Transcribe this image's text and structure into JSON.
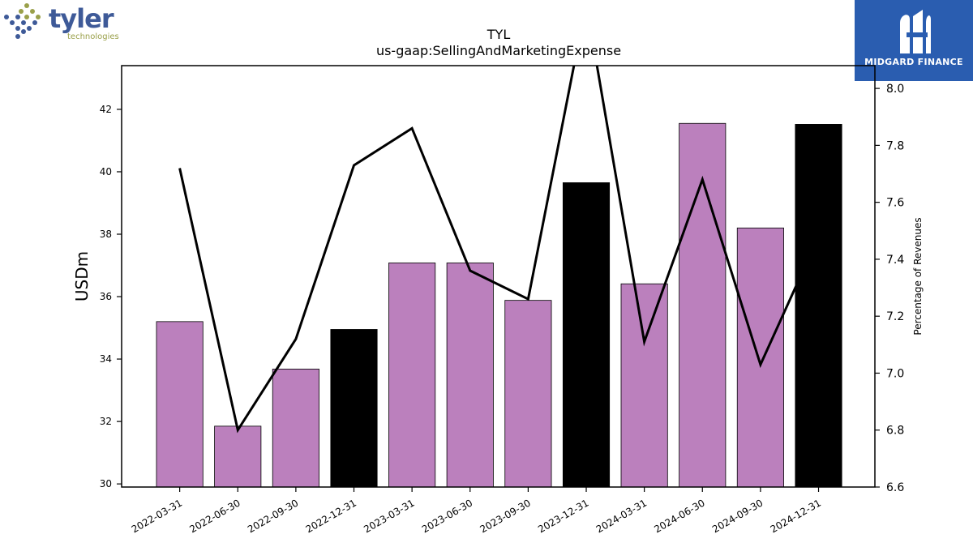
{
  "logos": {
    "left": {
      "word": "tyler",
      "sub": "technologies",
      "icon": "tyler-dots-logo"
    },
    "right": {
      "name": "MIDGARD FINANCE",
      "icon": "midgard-logo"
    }
  },
  "chart_data": {
    "type": "bar",
    "title": "TYL",
    "subtitle": "us-gaap:SellingAndMarketingExpense",
    "ylabel": "USDm",
    "y2label": "Percentage of Revenues",
    "categories": [
      "2022-03-31",
      "2022-06-30",
      "2022-09-30",
      "2022-12-31",
      "2023-03-31",
      "2023-06-30",
      "2023-09-30",
      "2023-12-31",
      "2024-03-31",
      "2024-06-30",
      "2024-09-30",
      "2024-12-31"
    ],
    "series": [
      {
        "values": [
          35.2,
          31.85,
          33.68,
          34.95,
          37.08,
          37.08,
          35.88,
          39.65,
          36.41,
          41.55,
          38.2,
          41.52
        ],
        "axis": "left",
        "colors": [
          "#bb80bd",
          "#bb80bd",
          "#bb80bd",
          "#000000",
          "#bb80bd",
          "#bb80bd",
          "#bb80bd",
          "#000000",
          "#bb80bd",
          "#bb80bd",
          "#bb80bd",
          "#000000"
        ]
      },
      {
        "type": "line",
        "values": [
          7.72,
          6.8,
          7.12,
          7.73,
          7.86,
          7.36,
          7.26,
          8.3,
          7.11,
          7.68,
          7.03,
          7.48
        ],
        "axis": "right",
        "color": "#000000"
      }
    ],
    "ylim": [
      29.9,
      43.4
    ],
    "y2lim": [
      6.6,
      8.08
    ],
    "yticks": [
      30,
      32,
      34,
      36,
      38,
      40,
      42
    ],
    "y2ticks": [
      6.6,
      6.8,
      7.0,
      7.2,
      7.4,
      7.6,
      7.8,
      8.0
    ],
    "y2tick_labels": [
      "6.6",
      "6.8",
      "7.0",
      "7.2",
      "7.4",
      "7.6",
      "7.8",
      "8.0"
    ],
    "grid": false
  }
}
